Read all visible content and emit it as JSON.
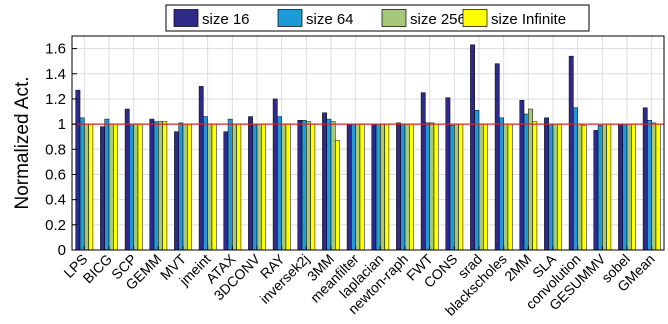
{
  "chart_data": {
    "type": "bar",
    "ylabel": "Normalized Act.",
    "xlabel": "",
    "title": "",
    "ylim": [
      0,
      1.7
    ],
    "yticks": [
      0,
      0.2,
      0.4,
      0.6,
      0.8,
      1,
      1.2,
      1.4,
      1.6
    ],
    "ytick_labels": [
      "0",
      "0.2",
      "0.4",
      "0.6",
      "0.8",
      "1",
      "1.2",
      "1.4",
      "1.6"
    ],
    "reference_line": {
      "y": 1,
      "color": "#d62728"
    },
    "grid": true,
    "legend_position": "top-center",
    "categories": [
      "LPS",
      "BICG",
      "SCP",
      "GEMM",
      "MVT",
      "jmeint",
      "ATAX",
      "3DCONV",
      "RAY",
      "inversek2j",
      "3MM",
      "meanfilter",
      "laplacian",
      "newton-raph",
      "FWT",
      "CONS",
      "srad",
      "blackscholes",
      "2MM",
      "SLA",
      "convolution",
      "GESUMMV",
      "sobel",
      "GMean"
    ],
    "series": [
      {
        "name": "size 16",
        "color": "#2e2a8a",
        "values": [
          1.27,
          0.98,
          1.12,
          1.04,
          0.94,
          1.3,
          0.94,
          1.06,
          1.2,
          1.03,
          1.09,
          1.0,
          1.0,
          1.01,
          1.25,
          1.21,
          1.63,
          1.48,
          1.19,
          1.05,
          1.54,
          0.95,
          1.0,
          1.13
        ]
      },
      {
        "name": "size 64",
        "color": "#1f9ad6",
        "values": [
          1.05,
          1.04,
          1.0,
          1.02,
          1.01,
          1.06,
          1.04,
          1.0,
          1.06,
          1.03,
          1.04,
          1.0,
          1.0,
          1.0,
          1.01,
          0.99,
          1.11,
          1.05,
          1.08,
          1.0,
          1.13,
          0.99,
          1.0,
          1.03
        ]
      },
      {
        "name": "size 256",
        "color": "#a6c87a",
        "values": [
          1.0,
          1.0,
          1.0,
          1.02,
          1.0,
          1.0,
          1.0,
          1.0,
          1.0,
          1.02,
          1.02,
          1.0,
          1.0,
          1.0,
          1.01,
          1.0,
          1.0,
          1.0,
          1.12,
          1.0,
          1.0,
          1.0,
          1.0,
          1.01
        ]
      },
      {
        "name": "size Infinite",
        "color": "#ffff00",
        "values": [
          1.0,
          1.0,
          1.0,
          1.02,
          1.0,
          1.0,
          1.0,
          1.0,
          1.0,
          1.0,
          0.87,
          1.0,
          1.0,
          1.0,
          1.0,
          1.0,
          1.0,
          1.0,
          1.02,
          1.0,
          0.99,
          1.0,
          1.0,
          1.0
        ]
      }
    ]
  }
}
